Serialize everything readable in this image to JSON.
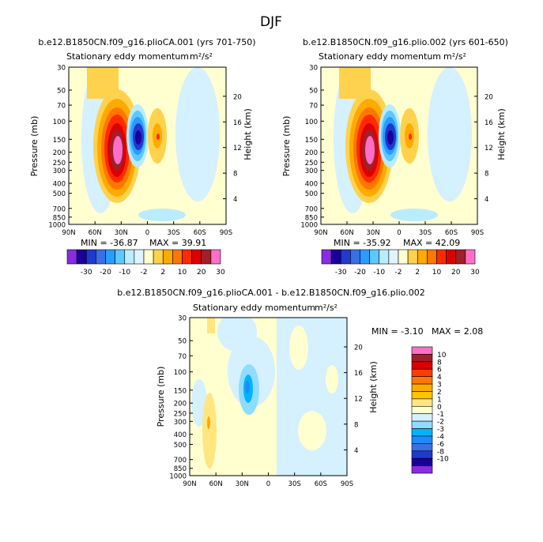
{
  "page": {
    "title": "DJF"
  },
  "colors": {
    "levels_top": [
      "#8a2be2",
      "#1a0099",
      "#1f3acc",
      "#3a6fe6",
      "#2a9bff",
      "#5cc8ff",
      "#b9ecff",
      "#dff4ff",
      "#ffffd0",
      "#ffd24d",
      "#ffaa00",
      "#ff7700",
      "#ff2a00",
      "#dd0000",
      "#a01f2a",
      "#ff6ec7"
    ],
    "levels_diff": [
      "#8a2be2",
      "#1a0099",
      "#1f3acc",
      "#3a6fe6",
      "#1a8cff",
      "#00b4ff",
      "#8fdcff",
      "#d5f0ff",
      "#ffffd0",
      "#ffe680",
      "#ffc400",
      "#ffaa00",
      "#ff7700",
      "#ff3c00",
      "#dd0000",
      "#a01f2a",
      "#ff6ec7"
    ]
  },
  "chart_data": [
    {
      "type": "contour",
      "title": "b.e12.B1850CN.f09_g16.plioCA.001 (yrs 701-750)",
      "subtitle": "Stationary eddy momentum",
      "units": "m²/s²",
      "ylabel": "Pressure (mb)",
      "y2label": "Height (km)",
      "x_ticks": [
        "90N",
        "60N",
        "30N",
        "0",
        "30S",
        "60S",
        "90S"
      ],
      "y_ticks": [
        "30",
        "50",
        "70",
        "100",
        "150",
        "200",
        "250",
        "300",
        "400",
        "500",
        "700",
        "850",
        "1000"
      ],
      "y2_ticks": [
        "20",
        "16",
        "12",
        "8",
        "4"
      ],
      "min_label": "MIN = -36.87",
      "max_label": "MAX = 39.91",
      "min": -36.87,
      "max": 39.91,
      "features": [
        {
          "lat": 22,
          "p": 200,
          "value": 39.9
        },
        {
          "lat": -7,
          "p": 150,
          "value": -36.9
        },
        {
          "lat": -23,
          "p": 150,
          "value": 12
        }
      ]
    },
    {
      "type": "contour",
      "title": "b.e12.B1850CN.f09_g16.plio.002 (yrs 601-650)",
      "subtitle": "Stationary eddy momentum",
      "units": "m²/s²",
      "ylabel": "Pressure (mb)",
      "y2label": "Height (km)",
      "x_ticks": [
        "90N",
        "60N",
        "30N",
        "0",
        "30S",
        "60S",
        "90S"
      ],
      "y_ticks": [
        "30",
        "50",
        "70",
        "100",
        "150",
        "200",
        "250",
        "300",
        "400",
        "500",
        "700",
        "850",
        "1000"
      ],
      "y2_ticks": [
        "20",
        "16",
        "12",
        "8",
        "4"
      ],
      "min_label": "MIN = -35.92",
      "max_label": "MAX = 42.09",
      "min": -35.92,
      "max": 42.09,
      "features": [
        {
          "lat": 22,
          "p": 200,
          "value": 42.1
        },
        {
          "lat": -7,
          "p": 150,
          "value": -35.9
        },
        {
          "lat": -23,
          "p": 150,
          "value": 12
        }
      ]
    },
    {
      "type": "contour",
      "title": "b.e12.B1850CN.f09_g16.plioCA.001 - b.e12.B1850CN.f09_g16.plio.002",
      "subtitle": "Stationary eddy momentum",
      "units": "m²/s²",
      "ylabel": "Pressure (mb)",
      "y2label": "Height (km)",
      "x_ticks": [
        "90N",
        "60N",
        "30N",
        "0",
        "30S",
        "60S",
        "90S"
      ],
      "y_ticks": [
        "30",
        "50",
        "70",
        "100",
        "150",
        "200",
        "250",
        "300",
        "400",
        "500",
        "700",
        "850",
        "1000"
      ],
      "y2_ticks": [
        "20",
        "16",
        "12",
        "8",
        "4"
      ],
      "min_label": "MIN = -3.10",
      "max_label": "MAX = 2.08",
      "min": -3.1,
      "max": 2.08,
      "features": [
        {
          "lat": 25,
          "p": 150,
          "value": -3.1
        },
        {
          "lat": 68,
          "p": 300,
          "value": 2.08
        }
      ]
    }
  ],
  "legend_top": {
    "labels": [
      "-30",
      "-20",
      "-10",
      "-2",
      "2",
      "10",
      "20",
      "30"
    ]
  },
  "legend_diff": {
    "labels": [
      "10",
      "8",
      "6",
      "4",
      "3",
      "2",
      "1",
      "0",
      "-1",
      "-2",
      "-3",
      "-4",
      "-6",
      "-8",
      "-10"
    ]
  }
}
